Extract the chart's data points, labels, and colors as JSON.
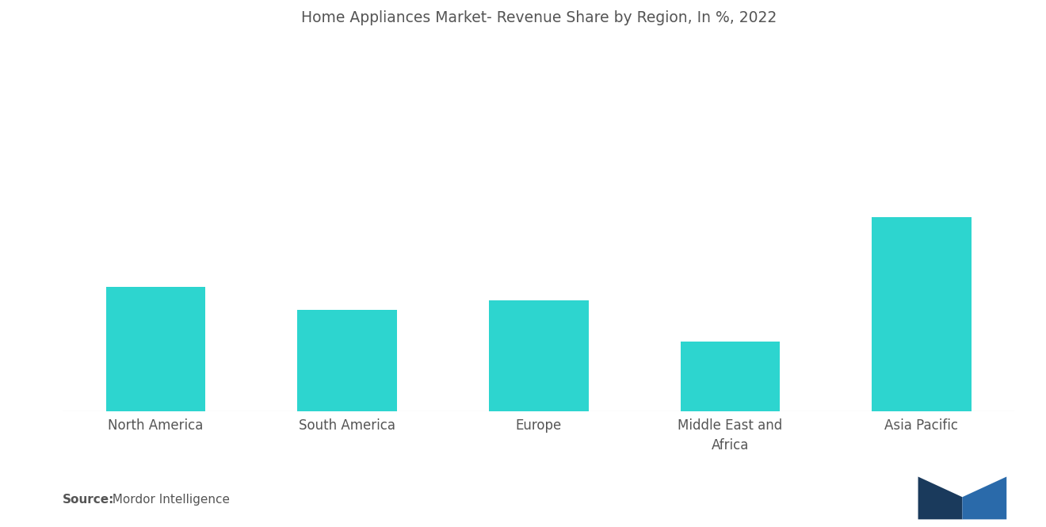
{
  "categories": [
    "North America",
    "South America",
    "Europe",
    "Middle East and\nAfrica",
    "Asia Pacific"
  ],
  "values": [
    27,
    22,
    24,
    15,
    42
  ],
  "bar_color": "#2DD5CF",
  "title": "Home Appliances Market- Revenue Share by Region, In %, 2022",
  "title_fontsize": 13.5,
  "title_color": "#555555",
  "label_fontsize": 12,
  "label_color": "#555555",
  "background_color": "#ffffff",
  "source_bold": "Source:",
  "source_text": "  Mordor Intelligence",
  "source_fontsize": 11,
  "bar_width": 0.52,
  "ylim": [
    0,
    80
  ],
  "logo_color_dark": "#1a3a5c",
  "logo_color_light": "#2a6aaa"
}
